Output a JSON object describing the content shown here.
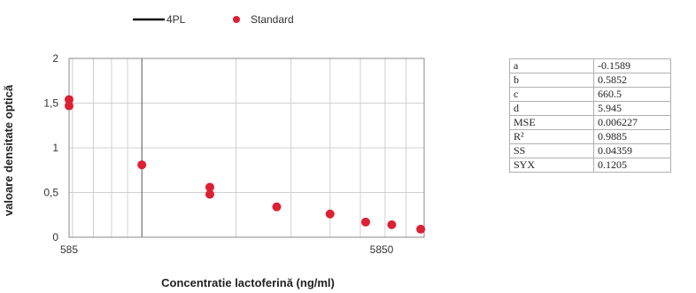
{
  "colors": {
    "curve": "#111111",
    "points": "#dd2033",
    "grid": "#d0d0d0",
    "axis": "#555555"
  },
  "chart_data": {
    "type": "scatter",
    "xscale": "log",
    "xlim": [
      585,
      8000
    ],
    "ylim": [
      0,
      2
    ],
    "xticks": [
      585,
      5850
    ],
    "xtick_labels": [
      "585",
      "5850"
    ],
    "yticks": [
      0,
      0.5,
      1,
      1.5,
      2
    ],
    "ytick_labels": [
      "0",
      "0,5",
      "1",
      "1,5",
      "2"
    ],
    "xlabel": "Concentratie lactoferină (ng/ml)",
    "ylabel": "valoare densitate optică",
    "grid": true,
    "legend": {
      "position": "top-left",
      "entries": [
        "4PL",
        "Standard"
      ]
    },
    "series": [
      {
        "name": "4PL",
        "kind": "line",
        "model": {
          "a": -0.1589,
          "b": 0.5852,
          "c": 660.5,
          "d": 5.945
        }
      },
      {
        "name": "Standard",
        "kind": "points",
        "x": [
          585,
          585,
          1000,
          1650,
          1650,
          2700,
          4000,
          5200,
          6300,
          7800
        ],
        "y": [
          1.54,
          1.47,
          0.81,
          0.56,
          0.48,
          0.34,
          0.26,
          0.17,
          0.14,
          0.09
        ]
      }
    ]
  },
  "params_table": [
    {
      "key": "a",
      "value": "-0.1589"
    },
    {
      "key": "b",
      "value": "0.5852"
    },
    {
      "key": "c",
      "value": "660.5"
    },
    {
      "key": "d",
      "value": "5.945"
    },
    {
      "key": "MSE",
      "value": "0.006227"
    },
    {
      "key": "R²",
      "value": "0.9885"
    },
    {
      "key": "SS",
      "value": "0.04359"
    },
    {
      "key": "SYX",
      "value": "0.1205"
    }
  ]
}
